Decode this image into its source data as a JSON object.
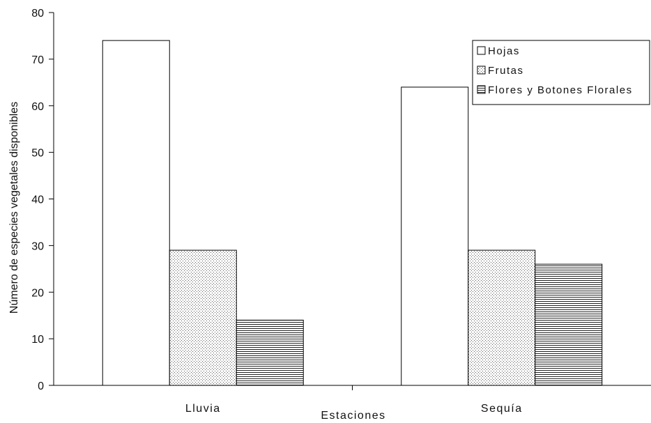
{
  "chart_data": {
    "type": "bar",
    "title": "",
    "xlabel": "Estaciones",
    "ylabel": "Número de especies vegetales disponibles",
    "categories": [
      "Lluvia",
      "Sequía"
    ],
    "series": [
      {
        "name": "Hojas",
        "values": [
          74,
          64
        ],
        "pattern": "none"
      },
      {
        "name": "Frutas",
        "values": [
          29,
          29
        ],
        "pattern": "dots"
      },
      {
        "name": "Flores y Botones Florales",
        "values": [
          14,
          26
        ],
        "pattern": "hlines"
      }
    ],
    "ylim": [
      0,
      80
    ],
    "yticks": [
      0,
      10,
      20,
      30,
      40,
      50,
      60,
      70,
      80
    ],
    "grid": false,
    "legend": "top-right",
    "colors": {
      "bar_fill": "#ffffff",
      "bar_stroke": "#000000",
      "pattern": "#333333"
    }
  }
}
